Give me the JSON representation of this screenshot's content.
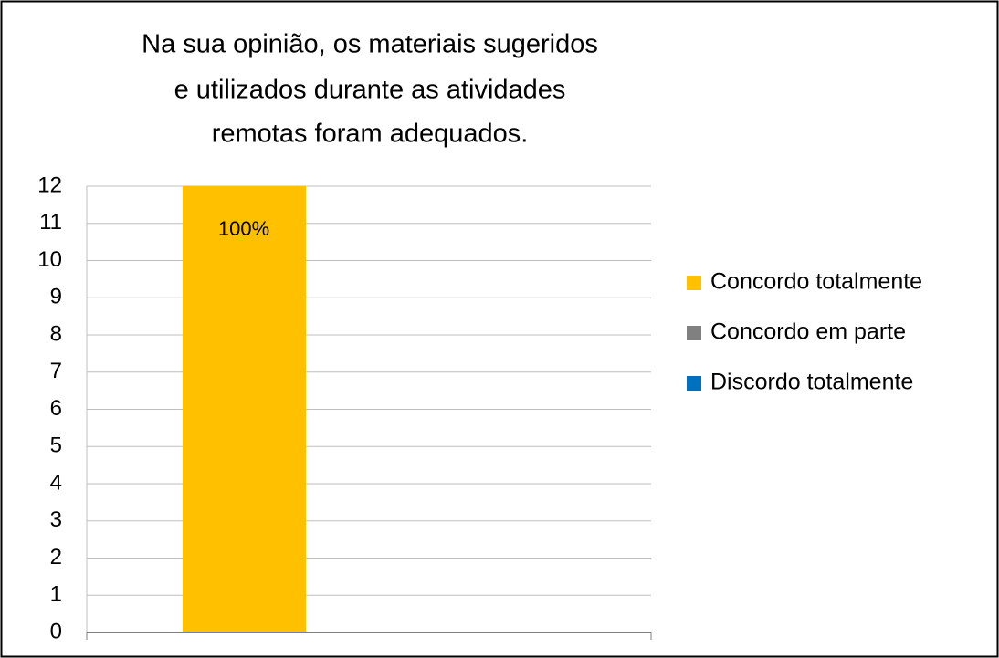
{
  "chart_data": {
    "type": "bar",
    "title": [
      "Na sua opinião, os materiais sugeridos",
      "e utilizados durante as atividades",
      "remotas foram adequados."
    ],
    "categories": [
      null
    ],
    "series": [
      {
        "name": "Concordo totalmente",
        "color": "#FFC000",
        "values": [
          12
        ]
      },
      {
        "name": "Concordo em parte",
        "color": "#808080",
        "values": [
          0
        ]
      },
      {
        "name": "Discordo totalmente",
        "color": "#0070C0",
        "values": [
          0
        ]
      }
    ],
    "annotations": [
      "100%"
    ],
    "ylim": [
      0,
      12
    ],
    "yticks": [
      0,
      1,
      2,
      3,
      4,
      5,
      6,
      7,
      8,
      9,
      10,
      11,
      12
    ],
    "grid": true,
    "legend": "right"
  }
}
